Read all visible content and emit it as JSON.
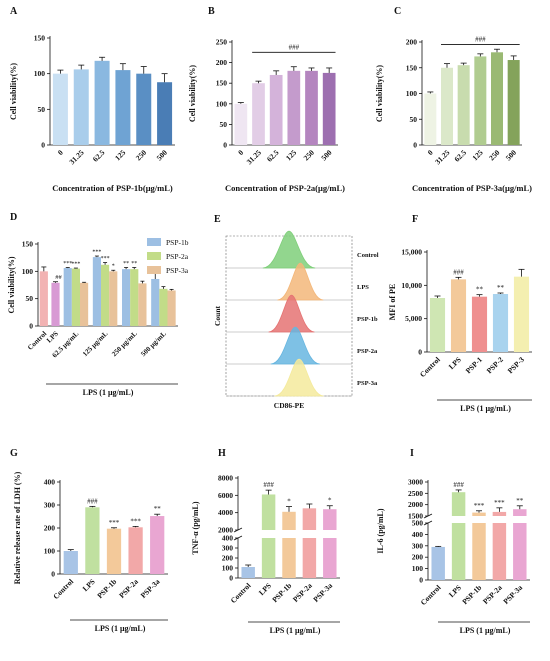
{
  "chart_data": [
    {
      "panel": "A",
      "type": "bar",
      "categories": [
        "0",
        "31.25",
        "62.5",
        "125",
        "250",
        "500"
      ],
      "values": [
        100,
        106,
        118,
        105,
        100,
        88
      ],
      "errors": [
        5,
        6,
        5,
        9,
        10,
        12
      ],
      "colors": [
        "#c9e0f3",
        "#a9cdeb",
        "#8ab8e0",
        "#6fa3d3",
        "#5a8fc4",
        "#4a7db5"
      ],
      "ylabel": "Cell viability(%)",
      "xlabel": "Concentration of PSP-1b(μg/mL)",
      "ylim": [
        0,
        150
      ],
      "yticks": [
        0,
        50,
        100,
        150
      ],
      "bracket": null
    },
    {
      "panel": "B",
      "type": "bar",
      "categories": [
        "0",
        "31.25",
        "62.5",
        "125",
        "250",
        "500"
      ],
      "values": [
        100,
        150,
        170,
        180,
        180,
        175
      ],
      "errors": [
        3,
        5,
        10,
        10,
        7,
        12
      ],
      "colors": [
        "#efe6f2",
        "#e2cde6",
        "#d4b3da",
        "#c49bcc",
        "#b485bf",
        "#9d6fb0"
      ],
      "ylabel": "Cell viability(%)",
      "xlabel": "Concentration of PSP-2a(μg/mL)",
      "ylim": [
        0,
        250
      ],
      "yticks": [
        0,
        50,
        100,
        150,
        200,
        250
      ],
      "bracket": {
        "from": 1,
        "to": 5,
        "level": 225,
        "label": "###"
      }
    },
    {
      "panel": "C",
      "type": "bar",
      "categories": [
        "0",
        "31.25",
        "62.5",
        "125",
        "250",
        "500"
      ],
      "values": [
        100,
        150,
        155,
        172,
        180,
        165
      ],
      "errors": [
        3,
        8,
        4,
        5,
        6,
        8
      ],
      "colors": [
        "#eef3e4",
        "#dbe8c9",
        "#c8dcae",
        "#b0cc90",
        "#9ab973",
        "#84a35b"
      ],
      "ylabel": "Cell viability(%)",
      "xlabel": "Concentration of PSP-3a(μg/mL)",
      "ylim": [
        0,
        200
      ],
      "yticks": [
        0,
        50,
        100,
        150,
        200
      ],
      "bracket": {
        "from": 1,
        "to": 5,
        "level": 195,
        "label": "###"
      }
    },
    {
      "panel": "D",
      "type": "bar",
      "groups": [
        "Control",
        "LPS",
        "62.5 μg/mL",
        "125 μg/mL",
        "250 μg/mL",
        "500 μg/mL"
      ],
      "single": [
        {
          "value": 100,
          "error": 8,
          "color": "#f2b3b3",
          "sig": ""
        },
        {
          "value": 79,
          "error": 2,
          "color": "#d89ad4",
          "sig": "##"
        }
      ],
      "series": [
        {
          "name": "PSP-1b",
          "color": "#9dbfe3",
          "values": [
            106,
            126,
            104,
            86
          ],
          "errors": [
            1,
            2,
            3,
            10
          ],
          "sig": [
            "***",
            "***",
            "**",
            ""
          ]
        },
        {
          "name": "PSP-2a",
          "color": "#c2dc88",
          "values": [
            105,
            112,
            104,
            68
          ],
          "errors": [
            1,
            4,
            3,
            4
          ],
          "sig": [
            "***",
            "***",
            "**",
            ""
          ]
        },
        {
          "name": "PSP-3a",
          "color": "#e8c29a",
          "values": [
            79,
            100,
            78,
            65
          ],
          "errors": [
            1,
            2,
            4,
            2
          ],
          "sig": [
            "",
            "*",
            "",
            ""
          ]
        }
      ],
      "ylabel": "Cell viability(%)",
      "footer": "LPS (1 μg/mL)",
      "ylim": [
        0,
        150
      ],
      "yticks": [
        0,
        50,
        100,
        150
      ],
      "legend_position": "top-right"
    },
    {
      "panel": "E",
      "type": "flow-histogram",
      "rows": [
        {
          "label": "Control",
          "color": "#7fcf7a"
        },
        {
          "label": "LPS",
          "color": "#f3b77a"
        },
        {
          "label": "PSP-1b",
          "color": "#e57373"
        },
        {
          "label": "PSP-2a",
          "color": "#67b6e0"
        },
        {
          "label": "PSP-3a",
          "color": "#f4ea9c"
        }
      ],
      "xlabel": "CD86-PE",
      "ylabel": "Count"
    },
    {
      "panel": "F",
      "type": "bar",
      "categories": [
        "Control",
        "LPS",
        "PSP-1",
        "PSP-2",
        "PSP-3"
      ],
      "values": [
        8100,
        10900,
        8300,
        8700,
        11300
      ],
      "errors": [
        300,
        300,
        300,
        150,
        1100
      ],
      "colors": [
        "#cfe6b3",
        "#f3c99a",
        "#ef8f8f",
        "#a9d3ee",
        "#f4efb0"
      ],
      "sig": [
        "",
        "###",
        "**",
        "**",
        ""
      ],
      "ylabel": "MFI of PE",
      "footer": "LPS (1 μg/mL)",
      "ylim": [
        0,
        15000
      ],
      "yticks": [
        0,
        5000,
        10000,
        15000
      ],
      "yticklabels": [
        "0",
        "5,000",
        "10,000",
        "15,000"
      ]
    },
    {
      "panel": "G",
      "type": "bar",
      "categories": [
        "Control",
        "LPS",
        "PSP-1b",
        "PSP-2a",
        "PSP-3a"
      ],
      "values": [
        100,
        290,
        197,
        203,
        252
      ],
      "errors": [
        6,
        4,
        4,
        4,
        8
      ],
      "colors": [
        "#a8c4e6",
        "#c0e0a0",
        "#f3c99a",
        "#f2a8a8",
        "#e9a6d2"
      ],
      "sig": [
        "",
        "###",
        "***",
        "***",
        "**"
      ],
      "ylabel": "Relative release rate of LDH (%)",
      "footer": "LPS (1 μg/mL)",
      "ylim": [
        0,
        400
      ],
      "yticks": [
        0,
        100,
        200,
        300,
        400
      ]
    },
    {
      "panel": "H",
      "type": "bar",
      "categories": [
        "Control",
        "LPS",
        "PSP-1b",
        "PSP-2a",
        "PSP-3a"
      ],
      "values": [
        110,
        6100,
        4100,
        4500,
        4400
      ],
      "errors": [
        20,
        500,
        600,
        500,
        400
      ],
      "colors": [
        "#a8c4e6",
        "#c0e0a0",
        "#f3c99a",
        "#f2a8a8",
        "#e9a6d2"
      ],
      "sig": [
        "",
        "###",
        "*",
        "",
        "*"
      ],
      "ylabel": "TNF-α (pg/mL)",
      "footer": "LPS (1 μg/mL)",
      "axis_break": [
        400,
        2000
      ],
      "ytick_low": [
        0,
        100,
        200,
        300,
        400
      ],
      "ytick_high": [
        2000,
        4000,
        6000,
        8000
      ]
    },
    {
      "panel": "I",
      "type": "bar",
      "categories": [
        "Control",
        "LPS",
        "PSP-1b",
        "PSP-2a",
        "PSP-3a"
      ],
      "values": [
        290,
        2550,
        1650,
        1680,
        1800
      ],
      "errors": [
        5,
        100,
        80,
        180,
        150
      ],
      "colors": [
        "#a8c4e6",
        "#c0e0a0",
        "#f3c99a",
        "#f2a8a8",
        "#e9a6d2"
      ],
      "sig": [
        "",
        "###",
        "***",
        "***",
        "**"
      ],
      "ylabel": "IL-6 (pg/mL)",
      "footer": "LPS (1 μg/mL)",
      "axis_break": [
        500,
        1500
      ],
      "ytick_low": [
        0,
        100,
        200,
        300,
        400,
        500
      ],
      "ytick_high": [
        1500,
        2000,
        2500,
        3000
      ]
    }
  ]
}
